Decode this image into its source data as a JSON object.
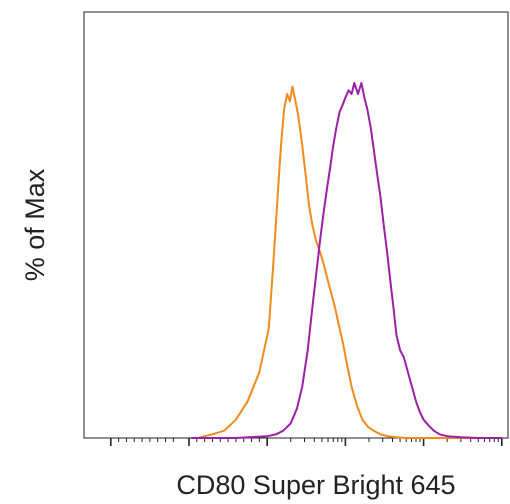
{
  "chart_data": {
    "type": "line",
    "title": "",
    "xlabel": "CD80 Super Bright 645",
    "ylabel": "% of Max",
    "x_scale": "log (biexponential display)",
    "x_ticks": {
      "major": [
        -1000,
        0,
        1000,
        10000,
        100000,
        1000000
      ],
      "tick_labels_shown": false
    },
    "y_ticks_shown": false,
    "ylim": [
      0,
      100
    ],
    "grid": false,
    "legend": "none",
    "series": [
      {
        "color": "#f28a1c",
        "points": [
          [
            30,
            0
          ],
          [
            60,
            0
          ],
          [
            120,
            0
          ],
          [
            200,
            0.5
          ],
          [
            300,
            1
          ],
          [
            450,
            2
          ],
          [
            600,
            5
          ],
          [
            750,
            10
          ],
          [
            900,
            18
          ],
          [
            1050,
            30
          ],
          [
            1200,
            48
          ],
          [
            1350,
            65
          ],
          [
            1500,
            80
          ],
          [
            1650,
            90
          ],
          [
            1800,
            94
          ],
          [
            1950,
            92
          ],
          [
            2100,
            96
          ],
          [
            2300,
            92
          ],
          [
            2500,
            88
          ],
          [
            2800,
            80
          ],
          [
            3100,
            72
          ],
          [
            3400,
            64
          ],
          [
            3800,
            58
          ],
          [
            4200,
            54
          ],
          [
            4700,
            51
          ],
          [
            5200,
            48
          ],
          [
            5800,
            44
          ],
          [
            6500,
            40
          ],
          [
            7300,
            36
          ],
          [
            8200,
            31
          ],
          [
            9300,
            26
          ],
          [
            10500,
            20
          ],
          [
            12000,
            14
          ],
          [
            14000,
            9
          ],
          [
            16500,
            5
          ],
          [
            19500,
            3
          ],
          [
            23000,
            2
          ],
          [
            28000,
            1
          ],
          [
            35000,
            0.5
          ],
          [
            45000,
            0.2
          ],
          [
            60000,
            0
          ],
          [
            100000,
            0
          ],
          [
            300000,
            0
          ],
          [
            1000000,
            0
          ]
        ]
      },
      {
        "color": "#9c1fa8",
        "points": [
          [
            30,
            0
          ],
          [
            200,
            0
          ],
          [
            600,
            0
          ],
          [
            1000,
            0.5
          ],
          [
            1300,
            1
          ],
          [
            1600,
            2
          ],
          [
            2000,
            4
          ],
          [
            2400,
            8
          ],
          [
            2800,
            14
          ],
          [
            3300,
            24
          ],
          [
            3800,
            36
          ],
          [
            4300,
            46
          ],
          [
            4800,
            55
          ],
          [
            5300,
            62
          ],
          [
            5800,
            68
          ],
          [
            6400,
            74
          ],
          [
            7000,
            80
          ],
          [
            7700,
            85
          ],
          [
            8400,
            89
          ],
          [
            9200,
            91
          ],
          [
            10000,
            93
          ],
          [
            11000,
            95
          ],
          [
            12000,
            94
          ],
          [
            13000,
            97
          ],
          [
            14500,
            94
          ],
          [
            16000,
            97
          ],
          [
            17500,
            93
          ],
          [
            19000,
            90
          ],
          [
            21000,
            85
          ],
          [
            23000,
            79
          ],
          [
            25500,
            72
          ],
          [
            28000,
            66
          ],
          [
            31000,
            58
          ],
          [
            34000,
            51
          ],
          [
            37500,
            43
          ],
          [
            41000,
            36
          ],
          [
            45000,
            28
          ],
          [
            50000,
            24
          ],
          [
            56000,
            22
          ],
          [
            63000,
            18
          ],
          [
            71000,
            14
          ],
          [
            80000,
            10
          ],
          [
            90000,
            7
          ],
          [
            100000,
            5
          ],
          [
            115000,
            3.5
          ],
          [
            135000,
            2
          ],
          [
            160000,
            1
          ],
          [
            200000,
            0.5
          ],
          [
            300000,
            0.2
          ],
          [
            500000,
            0
          ],
          [
            1000000,
            0
          ]
        ]
      }
    ]
  }
}
